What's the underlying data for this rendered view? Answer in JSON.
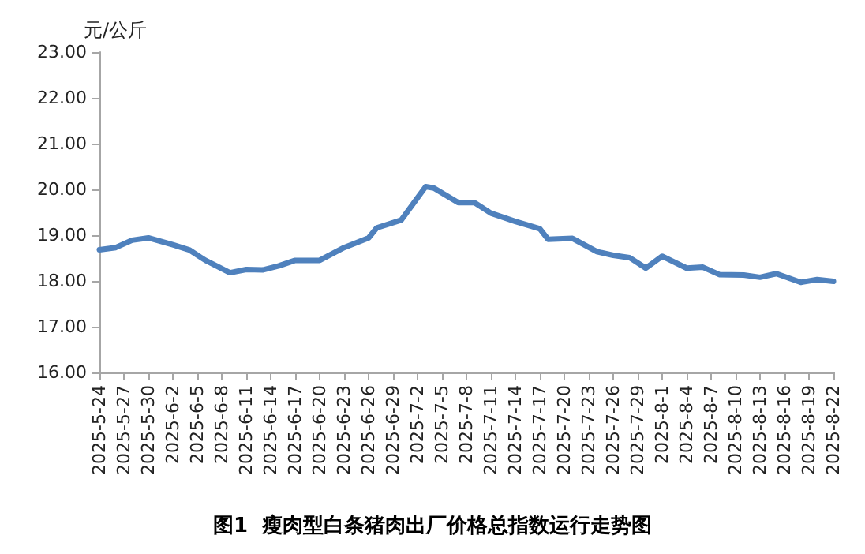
{
  "chart_data": {
    "type": "line",
    "title": "图1  瘦肉型白条猪肉出厂价格总指数运行走势图",
    "ylabel": "元/公斤",
    "x": [
      "2025-05-24",
      "2025-05-26",
      "2025-05-28",
      "2025-05-30",
      "2025-06-02",
      "2025-06-04",
      "2025-06-06",
      "2025-06-09",
      "2025-06-11",
      "2025-06-13",
      "2025-06-15",
      "2025-06-17",
      "2025-06-20",
      "2025-06-23",
      "2025-06-26",
      "2025-06-27",
      "2025-06-30",
      "2025-07-03",
      "2025-07-04",
      "2025-07-07",
      "2025-07-09",
      "2025-07-11",
      "2025-07-14",
      "2025-07-17",
      "2025-07-18",
      "2025-07-21",
      "2025-07-24",
      "2025-07-26",
      "2025-07-28",
      "2025-07-30",
      "2025-08-01",
      "2025-08-04",
      "2025-08-06",
      "2025-08-08",
      "2025-08-11",
      "2025-08-13",
      "2025-08-15",
      "2025-08-18",
      "2025-08-20",
      "2025-08-22"
    ],
    "series": [
      {
        "color": "#4f81bd",
        "values": [
          18.68,
          18.73,
          18.89,
          18.94,
          18.79,
          18.68,
          18.45,
          18.18,
          18.25,
          18.24,
          18.33,
          18.45,
          18.45,
          18.73,
          18.94,
          19.16,
          19.33,
          20.06,
          20.03,
          19.71,
          19.71,
          19.48,
          19.3,
          19.14,
          18.91,
          18.93,
          18.64,
          18.56,
          18.51,
          18.28,
          18.54,
          18.28,
          18.3,
          18.14,
          18.13,
          18.08,
          18.16,
          17.97,
          18.03,
          17.99
        ]
      }
    ],
    "xlim": [
      "2025-05-24",
      "2025-08-22"
    ],
    "xticks": [
      {
        "value": "2025-05-24",
        "label": "2025-5-24"
      },
      {
        "value": "2025-05-27",
        "label": "2025-5-27"
      },
      {
        "value": "2025-05-30",
        "label": "2025-5-30"
      },
      {
        "value": "2025-06-02",
        "label": "2025-6-2"
      },
      {
        "value": "2025-06-05",
        "label": "2025-6-5"
      },
      {
        "value": "2025-06-08",
        "label": "2025-6-8"
      },
      {
        "value": "2025-06-11",
        "label": "2025-6-11"
      },
      {
        "value": "2025-06-14",
        "label": "2025-6-14"
      },
      {
        "value": "2025-06-17",
        "label": "2025-6-17"
      },
      {
        "value": "2025-06-20",
        "label": "2025-6-20"
      },
      {
        "value": "2025-06-23",
        "label": "2025-6-23"
      },
      {
        "value": "2025-06-26",
        "label": "2025-6-26"
      },
      {
        "value": "2025-06-29",
        "label": "2025-6-29"
      },
      {
        "value": "2025-07-02",
        "label": "2025-7-2"
      },
      {
        "value": "2025-07-05",
        "label": "2025-7-5"
      },
      {
        "value": "2025-07-08",
        "label": "2025-7-8"
      },
      {
        "value": "2025-07-11",
        "label": "2025-7-11"
      },
      {
        "value": "2025-07-14",
        "label": "2025-7-14"
      },
      {
        "value": "2025-07-17",
        "label": "2025-7-17"
      },
      {
        "value": "2025-07-20",
        "label": "2025-7-20"
      },
      {
        "value": "2025-07-23",
        "label": "2025-7-23"
      },
      {
        "value": "2025-07-26",
        "label": "2025-7-26"
      },
      {
        "value": "2025-07-29",
        "label": "2025-7-29"
      },
      {
        "value": "2025-08-01",
        "label": "2025-8-1"
      },
      {
        "value": "2025-08-04",
        "label": "2025-8-4"
      },
      {
        "value": "2025-08-07",
        "label": "2025-8-7"
      },
      {
        "value": "2025-08-10",
        "label": "2025-8-10"
      },
      {
        "value": "2025-08-13",
        "label": "2025-8-13"
      },
      {
        "value": "2025-08-16",
        "label": "2025-8-16"
      },
      {
        "value": "2025-08-19",
        "label": "2025-8-19"
      },
      {
        "value": "2025-08-22",
        "label": "2025-8-22"
      }
    ],
    "ylim": [
      16,
      23
    ],
    "yticks": [
      {
        "value": 16,
        "label": "16.00"
      },
      {
        "value": 17,
        "label": "17.00"
      },
      {
        "value": 18,
        "label": "18.00"
      },
      {
        "value": 19,
        "label": "19.00"
      },
      {
        "value": 20,
        "label": "20.00"
      },
      {
        "value": 21,
        "label": "21.00"
      },
      {
        "value": 22,
        "label": "22.00"
      },
      {
        "value": 23,
        "label": "23.00"
      }
    ],
    "grid": false,
    "marker": "none",
    "line_style": "solid"
  }
}
